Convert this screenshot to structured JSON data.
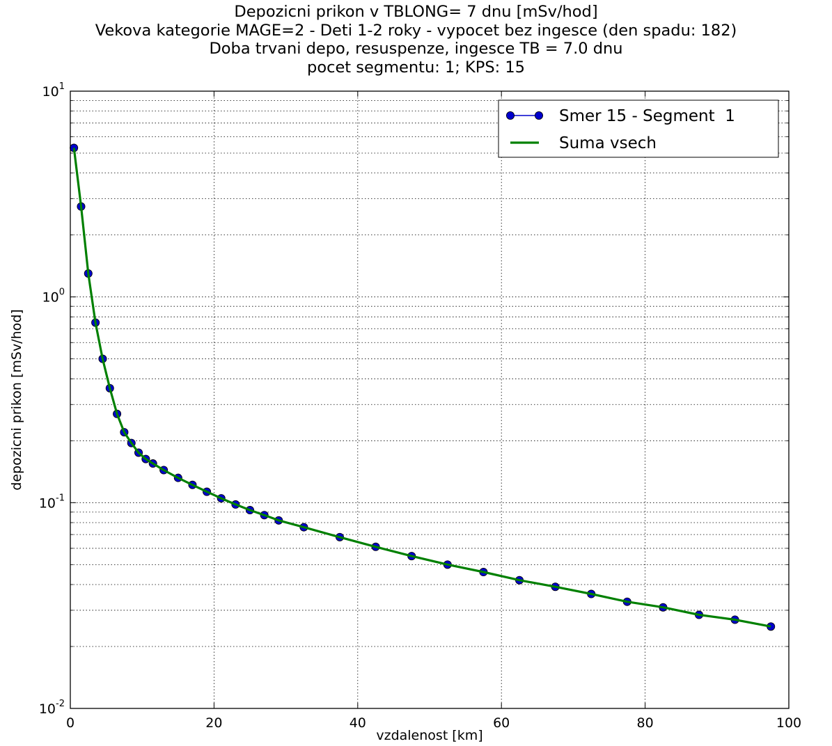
{
  "chart_data": {
    "type": "line",
    "title_lines": [
      "Depozicni prikon v TBLONG= 7 dnu [mSv/hod]",
      "Vekova kategorie MAGE=2 - Deti 1-2 roky - vypocet bez ingesce (den spadu: 182)",
      "Doba trvani depo, resuspenze, ingesce TB = 7.0 dnu",
      "pocet segmentu: 1; KPS: 15"
    ],
    "xlabel": "vzdalenost [km]",
    "ylabel": "depozicni prikon [mSv/hod]",
    "xlim": [
      0,
      100
    ],
    "ylim": [
      0.01,
      10
    ],
    "yscale": "log",
    "grid": true,
    "legend_position": "top-right",
    "x_ticks": [
      "0",
      "20",
      "40",
      "60",
      "80",
      "100"
    ],
    "y_ticks": [
      {
        "base": "10",
        "exp": "-2",
        "value": 0.01
      },
      {
        "base": "10",
        "exp": "-1",
        "value": 0.1
      },
      {
        "base": "10",
        "exp": "0",
        "value": 1
      },
      {
        "base": "10",
        "exp": "1",
        "value": 10
      }
    ],
    "x": [
      0.5,
      1.5,
      2.5,
      3.5,
      4.5,
      5.5,
      6.5,
      7.5,
      8.5,
      9.5,
      10.5,
      11.5,
      13,
      15,
      17,
      19,
      21,
      23,
      25,
      27,
      29,
      32.5,
      37.5,
      42.5,
      47.5,
      52.5,
      57.5,
      62.5,
      67.5,
      72.5,
      77.5,
      82.5,
      87.5,
      92.5,
      97.5
    ],
    "series": [
      {
        "name": "Smer 15 - Segment  1",
        "color": "#0000cc",
        "marker": "circle",
        "values": [
          5.3,
          2.75,
          1.3,
          0.75,
          0.5,
          0.36,
          0.27,
          0.22,
          0.195,
          0.175,
          0.163,
          0.155,
          0.144,
          0.132,
          0.122,
          0.113,
          0.105,
          0.098,
          0.092,
          0.087,
          0.082,
          0.076,
          0.068,
          0.061,
          0.055,
          0.05,
          0.046,
          0.042,
          0.039,
          0.036,
          0.033,
          0.031,
          0.0285,
          0.027,
          0.025
        ]
      },
      {
        "name": "Suma vsech",
        "color": "#008000",
        "marker": "none",
        "values": [
          5.3,
          2.75,
          1.3,
          0.75,
          0.5,
          0.36,
          0.27,
          0.22,
          0.195,
          0.175,
          0.163,
          0.155,
          0.144,
          0.132,
          0.122,
          0.113,
          0.105,
          0.098,
          0.092,
          0.087,
          0.082,
          0.076,
          0.068,
          0.061,
          0.055,
          0.05,
          0.046,
          0.042,
          0.039,
          0.036,
          0.033,
          0.031,
          0.0285,
          0.027,
          0.025
        ]
      }
    ]
  }
}
